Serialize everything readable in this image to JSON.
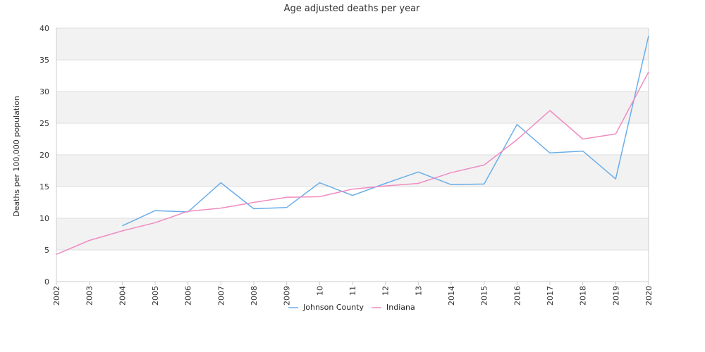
{
  "chart_data": {
    "type": "line",
    "title": "Age adjusted deaths per year",
    "xlabel": "",
    "ylabel": "Deaths per 100,000 population",
    "ylim": [
      0,
      40
    ],
    "yticks": [
      0,
      5,
      10,
      15,
      20,
      25,
      30,
      35,
      40
    ],
    "categories": [
      "2002",
      "2003",
      "2004",
      "2005",
      "2006",
      "2007",
      "2008",
      "2009",
      "2010",
      "2011",
      "2012",
      "2013",
      "2014",
      "2015",
      "2016",
      "2017",
      "2018",
      "2019",
      "2020"
    ],
    "tick_labels": [
      "2002",
      "2003",
      "2004",
      "2005",
      "2006",
      "2007",
      "2008",
      "2009",
      "10",
      "11",
      "12",
      "13",
      "2014",
      "2015",
      "2016",
      "2017",
      "2018",
      "2019",
      "2020"
    ],
    "grid": "horizontal alternating bands",
    "legend_position": "bottom",
    "series": [
      {
        "name": "Johnson County",
        "color": "#6aaee8",
        "values": [
          null,
          null,
          8.8,
          11.2,
          11.0,
          15.6,
          11.5,
          11.7,
          15.6,
          13.6,
          15.5,
          17.3,
          15.3,
          15.4,
          24.8,
          20.3,
          20.6,
          16.2,
          38.8
        ]
      },
      {
        "name": "Indiana",
        "color": "#f08cc0",
        "values": [
          4.3,
          6.5,
          8.0,
          9.3,
          11.1,
          11.6,
          12.5,
          13.3,
          13.4,
          14.6,
          15.1,
          15.5,
          17.2,
          18.4,
          22.4,
          27.0,
          22.5,
          23.3,
          33.1
        ]
      }
    ],
    "colors": {
      "band": "#f2f2f2",
      "gridline": "#dddddd",
      "axis": "#cccccc"
    }
  }
}
